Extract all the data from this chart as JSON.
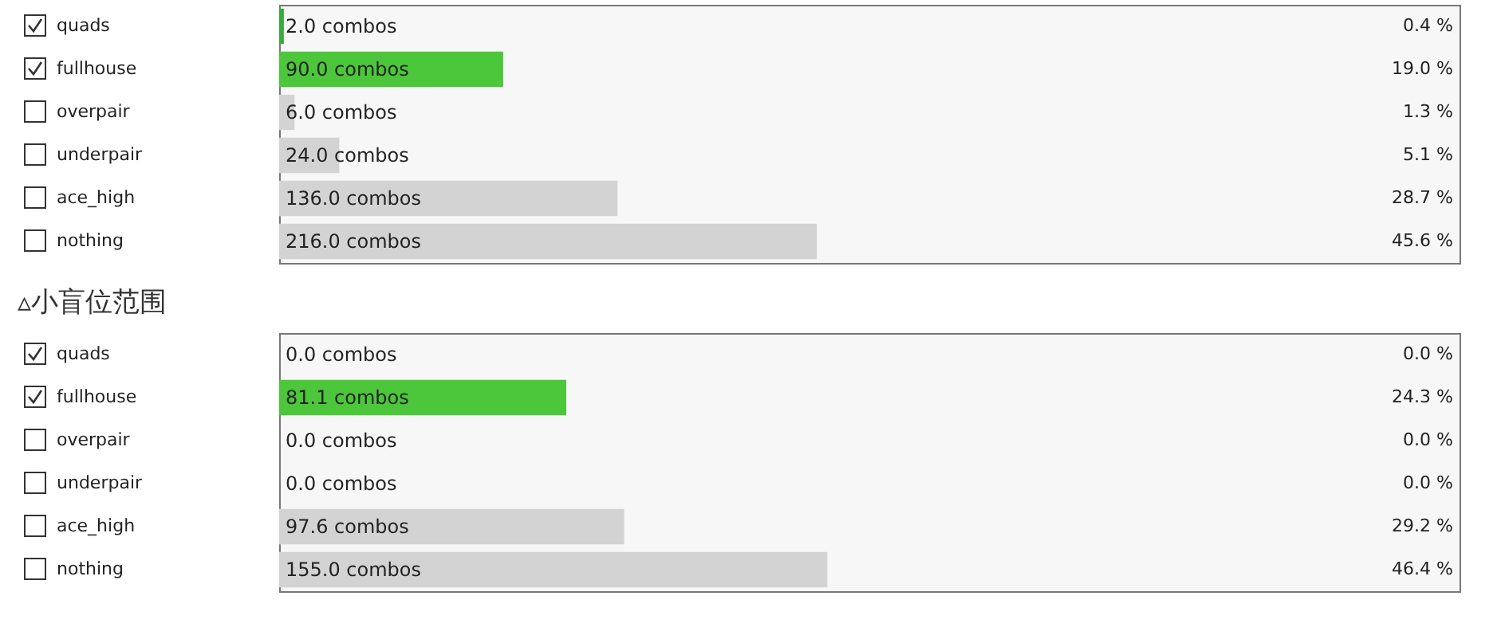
{
  "chart_data": [
    {
      "type": "bar",
      "orientation": "horizontal",
      "categories": [
        "quads",
        "fullhouse",
        "overpair",
        "underpair",
        "ace_high",
        "nothing"
      ],
      "values": [
        0.4,
        19.0,
        1.3,
        5.1,
        28.7,
        45.6
      ],
      "colors": [
        "#3aaa3a",
        "#4cc63a",
        "#d3d3d3",
        "#d3d3d3",
        "#d3d3d3",
        "#d3d3d3"
      ],
      "value_labels": [
        "0.4 %",
        "19.0 %",
        "1.3 %",
        "5.1 %",
        "28.7 %",
        "45.6 %"
      ],
      "annotations": [
        "2.0 combos",
        "90.0 combos",
        "6.0 combos",
        "24.0 combos",
        "136.0 combos",
        "216.0 combos"
      ],
      "tick_labels": "y"
    },
    {
      "type": "bar",
      "orientation": "horizontal",
      "title": "▵小盲位范围",
      "categories": [
        "quads",
        "fullhouse",
        "overpair",
        "underpair",
        "ace_high",
        "nothing"
      ],
      "values": [
        0.0,
        24.3,
        0.0,
        0.0,
        29.2,
        46.4
      ],
      "colors": [
        "#3aaa3a",
        "#4cc63a",
        "#d3d3d3",
        "#d3d3d3",
        "#d3d3d3",
        "#d3d3d3"
      ],
      "value_labels": [
        "0.0 %",
        "24.3 %",
        "0.0 %",
        "0.0 %",
        "29.2 %",
        "46.4 %"
      ],
      "annotations": [
        "0.0 combos",
        "81.1 combos",
        "0.0 combos",
        "0.0 combos",
        "97.6 combos",
        "155.0 combos"
      ],
      "tick_labels": "y"
    }
  ]
}
